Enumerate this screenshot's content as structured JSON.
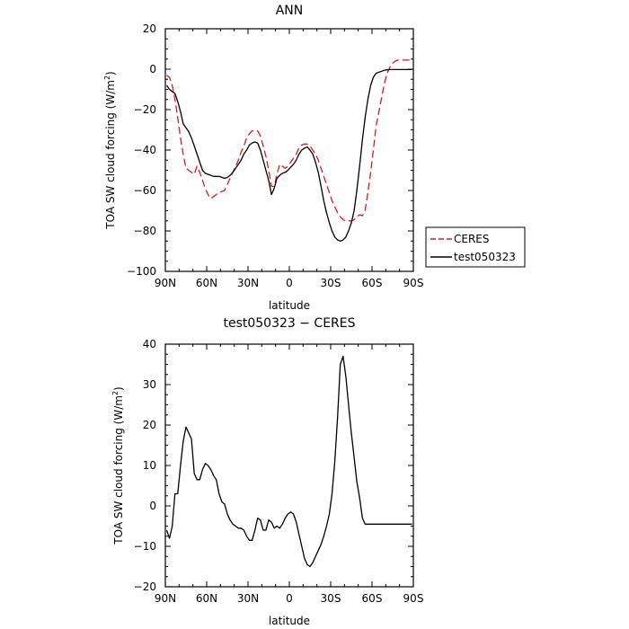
{
  "chart_data": [
    {
      "type": "line",
      "title": "ANN",
      "xlabel": "latitude",
      "ylabel": "TOA SW cloud forcing (W/m",
      "ylabel_sup": "2",
      "ylabel_close": ")",
      "xlim": [
        90,
        -90
      ],
      "ylim": [
        -100,
        20
      ],
      "x_ticks": [
        {
          "v": 90,
          "label": "90N"
        },
        {
          "v": 60,
          "label": "60N"
        },
        {
          "v": 30,
          "label": "30N"
        },
        {
          "v": 0,
          "label": "0"
        },
        {
          "v": -30,
          "label": "30S"
        },
        {
          "v": -60,
          "label": "60S"
        },
        {
          "v": -90,
          "label": "90S"
        }
      ],
      "y_ticks": [
        {
          "v": 20,
          "label": "20"
        },
        {
          "v": 0,
          "label": "0"
        },
        {
          "v": -20,
          "label": "−20"
        },
        {
          "v": -40,
          "label": "−40"
        },
        {
          "v": -60,
          "label": "−60"
        },
        {
          "v": -80,
          "label": "−80"
        },
        {
          "v": -100,
          "label": "−100"
        }
      ],
      "legend": "right",
      "series": [
        {
          "name": "CERES",
          "color": "#e8141e",
          "dash": "8,4",
          "x": [
            89,
            87,
            85,
            83,
            81,
            79,
            77,
            75,
            73,
            71,
            69,
            67,
            65,
            63,
            61,
            59,
            57,
            55,
            53,
            51,
            49,
            47,
            45,
            43,
            41,
            39,
            37,
            35,
            33,
            31,
            29,
            27,
            25,
            23,
            21,
            19,
            17,
            15,
            13,
            11,
            9,
            7,
            5,
            3,
            1,
            -1,
            -3,
            -5,
            -7,
            -9,
            -11,
            -13,
            -15,
            -17,
            -19,
            -21,
            -23,
            -25,
            -27,
            -29,
            -31,
            -33,
            -35,
            -37,
            -39,
            -41,
            -43,
            -45,
            -47,
            -49,
            -51,
            -53,
            -55,
            -57,
            -59,
            -61,
            -63,
            -65,
            -67,
            -69,
            -71,
            -73,
            -75,
            -77,
            -79,
            -81,
            -83,
            -85,
            -87,
            -89
          ],
          "y": [
            -3,
            -4,
            -8,
            -15,
            -24,
            -34,
            -42,
            -49,
            -50,
            -51,
            -52,
            -48,
            -51,
            -55,
            -59,
            -62,
            -64,
            -63,
            -62,
            -61,
            -60.5,
            -60,
            -57,
            -54,
            -51,
            -48,
            -45,
            -41,
            -38,
            -34,
            -32,
            -30.5,
            -30.5,
            -30.5,
            -33,
            -38,
            -43,
            -50,
            -58,
            -58,
            -52,
            -47,
            -48,
            -49,
            -48,
            -46,
            -44,
            -42,
            -39,
            -37.5,
            -37,
            -37,
            -38,
            -40,
            -42,
            -45,
            -49,
            -53,
            -57,
            -61,
            -65,
            -68,
            -71,
            -73,
            -74.5,
            -75,
            -75,
            -75,
            -74.5,
            -73,
            -72,
            -72.5,
            -70,
            -61,
            -51,
            -40,
            -28,
            -21,
            -14,
            -7,
            -2,
            1,
            3,
            4,
            4.5,
            4.5,
            4.5,
            4.5,
            4.5,
            4.5
          ]
        },
        {
          "name": "test050323",
          "color": "#000000",
          "dash": "",
          "x": [
            89,
            87,
            85,
            83,
            81,
            79,
            77,
            75,
            73,
            71,
            69,
            67,
            65,
            63,
            61,
            59,
            57,
            55,
            53,
            51,
            49,
            47,
            45,
            43,
            41,
            39,
            37,
            35,
            33,
            31,
            29,
            27,
            25,
            23,
            21,
            19,
            17,
            15,
            13,
            11,
            9,
            7,
            5,
            3,
            1,
            -1,
            -3,
            -5,
            -7,
            -9,
            -11,
            -13,
            -15,
            -17,
            -19,
            -21,
            -23,
            -25,
            -27,
            -29,
            -31,
            -33,
            -35,
            -37,
            -39,
            -41,
            -43,
            -45,
            -47,
            -49,
            -51,
            -53,
            -55,
            -57,
            -59,
            -61,
            -63,
            -65,
            -67,
            -69,
            -71,
            -73,
            -75,
            -77,
            -79,
            -81,
            -83,
            -85,
            -87,
            -89
          ],
          "y": [
            -8,
            -10,
            -11,
            -12,
            -16,
            -21,
            -27,
            -29,
            -31,
            -34,
            -38,
            -42,
            -46,
            -50,
            -51.5,
            -52,
            -52.5,
            -53,
            -53,
            -53,
            -53.5,
            -54,
            -53.5,
            -52.5,
            -51,
            -49,
            -47,
            -45,
            -42,
            -40,
            -37.5,
            -36.5,
            -36,
            -36.5,
            -40,
            -45,
            -50,
            -55,
            -62,
            -59,
            -54,
            -52.5,
            -51.5,
            -51,
            -50,
            -48.5,
            -47,
            -45,
            -42,
            -40,
            -39,
            -38.5,
            -40,
            -42,
            -46,
            -51,
            -58,
            -65,
            -71,
            -76,
            -80,
            -83,
            -84.5,
            -85,
            -84.5,
            -83,
            -80,
            -76,
            -70,
            -60,
            -48,
            -35,
            -24,
            -15,
            -8,
            -4,
            -2,
            -1.5,
            -1,
            -0.5,
            -0.3,
            -0.2,
            -0.2,
            -0.2,
            -0.2,
            -0.2,
            -0.2,
            -0.2,
            -0.2,
            -0.2
          ]
        }
      ]
    },
    {
      "type": "line",
      "title": "test050323 − CERES",
      "xlabel": "latitude",
      "ylabel": "TOA SW cloud forcing (W/m",
      "ylabel_sup": "2",
      "ylabel_close": ")",
      "xlim": [
        90,
        -90
      ],
      "ylim": [
        -20,
        40
      ],
      "x_ticks": [
        {
          "v": 90,
          "label": "90N"
        },
        {
          "v": 60,
          "label": "60N"
        },
        {
          "v": 30,
          "label": "30N"
        },
        {
          "v": 0,
          "label": "0"
        },
        {
          "v": -30,
          "label": "30S"
        },
        {
          "v": -60,
          "label": "60S"
        },
        {
          "v": -90,
          "label": "90S"
        }
      ],
      "y_ticks": [
        {
          "v": 40,
          "label": "40"
        },
        {
          "v": 30,
          "label": "30"
        },
        {
          "v": 20,
          "label": "20"
        },
        {
          "v": 10,
          "label": "10"
        },
        {
          "v": 0,
          "label": "0"
        },
        {
          "v": -10,
          "label": "−10"
        },
        {
          "v": -20,
          "label": "−20"
        }
      ],
      "series": [
        {
          "name": "",
          "color": "#000000",
          "dash": "",
          "x": [
            89,
            87,
            85,
            83,
            81,
            79,
            77,
            75,
            73,
            71,
            69,
            67,
            65,
            63,
            61,
            59,
            57,
            55,
            53,
            51,
            49,
            47,
            45,
            43,
            41,
            39,
            37,
            35,
            33,
            31,
            29,
            27,
            25,
            23,
            21,
            19,
            17,
            15,
            13,
            11,
            9,
            7,
            5,
            3,
            1,
            -1,
            -3,
            -5,
            -7,
            -9,
            -11,
            -13,
            -15,
            -17,
            -19,
            -21,
            -23,
            -25,
            -27,
            -29,
            -31,
            -33,
            -35,
            -37,
            -39,
            -41,
            -43,
            -45,
            -47,
            -49,
            -51,
            -53,
            -55,
            -57,
            -59,
            -61,
            -63,
            -65,
            -67,
            -69,
            -71,
            -73,
            -75,
            -77,
            -79,
            -81,
            -83,
            -85,
            -87,
            -89
          ],
          "y": [
            -6,
            -8,
            -5,
            3,
            3,
            10,
            16,
            19.5,
            18,
            16.5,
            8,
            6.5,
            6.5,
            9,
            10.5,
            10,
            9,
            7.5,
            6.5,
            3,
            1,
            0.5,
            -2,
            -3.5,
            -4.5,
            -5,
            -5.5,
            -5.5,
            -6,
            -7.5,
            -8.5,
            -8.5,
            -6,
            -3,
            -3.5,
            -6,
            -6,
            -3.5,
            -4,
            -5.5,
            -5,
            -5.5,
            -4.5,
            -3,
            -2,
            -1.5,
            -2,
            -4,
            -7,
            -10,
            -13,
            -14.5,
            -15,
            -14,
            -12.5,
            -11,
            -9.5,
            -7.5,
            -5,
            -2,
            3,
            11,
            22,
            35,
            37,
            32,
            25,
            18,
            12,
            6,
            2,
            -3,
            -4.5,
            -4.5,
            -4.5,
            -4.5,
            -4.5,
            -4.5,
            -4.5,
            -4.5,
            -4.5,
            -4.5,
            -4.5,
            -4.5,
            -4.5,
            -4.5,
            -4.5,
            -4.5,
            -4.5,
            -4.5
          ]
        }
      ]
    }
  ]
}
